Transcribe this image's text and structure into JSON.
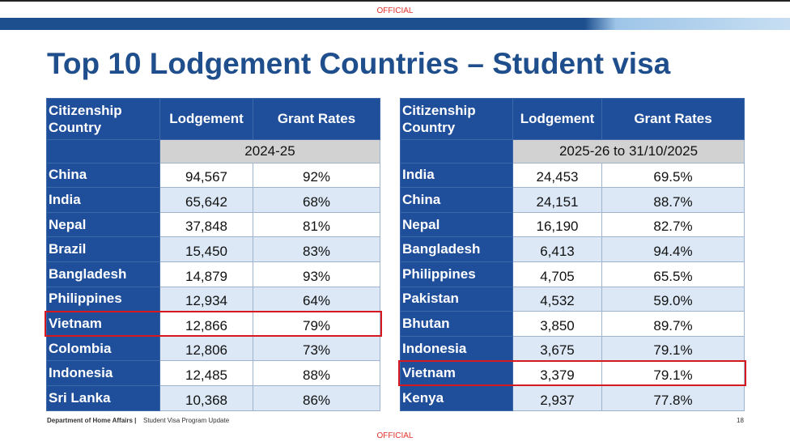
{
  "header": {
    "top_label": "OFFICIAL",
    "title": "Top 10 Lodgement Countries – Student visa"
  },
  "tables": [
    {
      "columns": [
        "Citizenship Country",
        "Lodgement",
        "Grant Rates"
      ],
      "period": "2024-25",
      "highlight_row": 6,
      "rows": [
        [
          "China",
          "94,567",
          "92%"
        ],
        [
          "India",
          "65,642",
          "68%"
        ],
        [
          "Nepal",
          "37,848",
          "81%"
        ],
        [
          "Brazil",
          "15,450",
          "83%"
        ],
        [
          "Bangladesh",
          "14,879",
          "93%"
        ],
        [
          "Philippines",
          "12,934",
          "64%"
        ],
        [
          "Vietnam",
          "12,866",
          "79%"
        ],
        [
          "Colombia",
          "12,806",
          "73%"
        ],
        [
          "Indonesia",
          "12,485",
          "88%"
        ],
        [
          "Sri Lanka",
          "10,368",
          "86%"
        ]
      ]
    },
    {
      "columns": [
        "Citizenship Country",
        "Lodgement",
        "Grant Rates"
      ],
      "period": "2025-26 to 31/10/2025",
      "highlight_row": 8,
      "rows": [
        [
          "India",
          "24,453",
          "69.5%"
        ],
        [
          "China",
          "24,151",
          "88.7%"
        ],
        [
          "Nepal",
          "16,190",
          "82.7%"
        ],
        [
          "Bangladesh",
          "6,413",
          "94.4%"
        ],
        [
          "Philippines",
          "4,705",
          "65.5%"
        ],
        [
          "Pakistan",
          "4,532",
          "59.0%"
        ],
        [
          "Bhutan",
          "3,850",
          "89.7%"
        ],
        [
          "Indonesia",
          "3,675",
          "79.1%"
        ],
        [
          "Vietnam",
          "3,379",
          "79.1%"
        ],
        [
          "Kenya",
          "2,937",
          "77.8%"
        ]
      ]
    }
  ],
  "footer": {
    "department": "Department of Home Affairs |",
    "program": "Student Visa Program Update",
    "page": "18",
    "bottom_label": "OFFICIAL"
  }
}
